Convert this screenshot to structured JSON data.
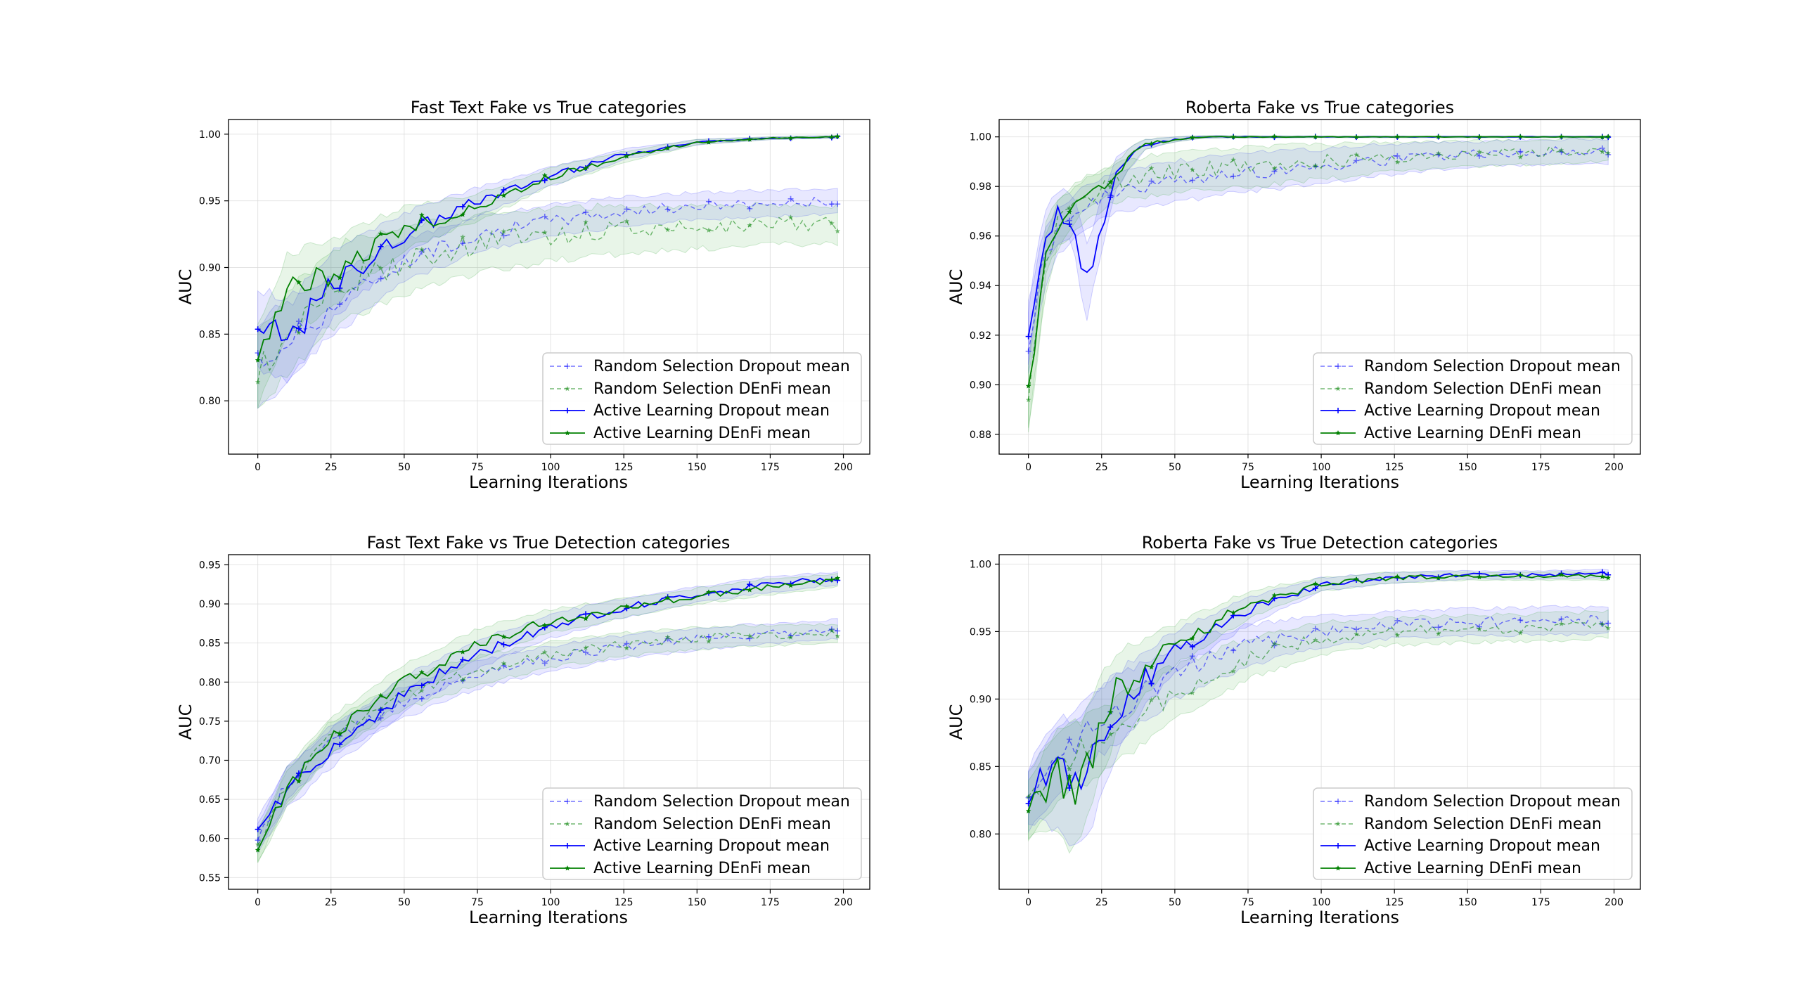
{
  "colors": {
    "blue": "#0000ff",
    "green": "#008000",
    "blue_band": "#4d4dff",
    "green_band": "#4caf50",
    "grid": "#d9d9d9"
  },
  "legend_location": "lower-right",
  "chart_data": [
    {
      "type": "line",
      "title": "Fast Text Fake vs True categories",
      "xlabel": "Learning Iterations",
      "ylabel": "AUC",
      "xlim": [
        -10,
        209
      ],
      "ylim": [
        0.76,
        1.011
      ],
      "x_ticks": [
        0,
        25,
        50,
        75,
        100,
        125,
        150,
        175,
        200
      ],
      "y_ticks": [
        0.8,
        0.85,
        0.9,
        0.95,
        1.0
      ],
      "grid": true,
      "legend": [
        "Random Selection Dropout mean",
        "Random Selection DEnFi mean",
        "Active Learning Dropout mean",
        "Active Learning DEnFi mean"
      ],
      "series": [
        {
          "name": "Random Selection Dropout mean",
          "style": "dashed",
          "color": "blue",
          "x": [
            0,
            10,
            25,
            50,
            75,
            100,
            125,
            150,
            175,
            198
          ],
          "values": [
            0.825,
            0.845,
            0.87,
            0.905,
            0.925,
            0.935,
            0.942,
            0.946,
            0.948,
            0.95
          ],
          "band": [
            0.035,
            0.028,
            0.022,
            0.016,
            0.013,
            0.012,
            0.011,
            0.01,
            0.01,
            0.009
          ]
        },
        {
          "name": "Random Selection DEnFi mean",
          "style": "dashed",
          "color": "green",
          "x": [
            0,
            10,
            25,
            50,
            75,
            100,
            125,
            150,
            175,
            198
          ],
          "values": [
            0.822,
            0.85,
            0.885,
            0.905,
            0.918,
            0.925,
            0.928,
            0.93,
            0.932,
            0.932
          ],
          "band": [
            0.03,
            0.03,
            0.03,
            0.026,
            0.022,
            0.02,
            0.018,
            0.016,
            0.015,
            0.014
          ]
        },
        {
          "name": "Active Learning Dropout mean",
          "style": "solid",
          "color": "blue",
          "x": [
            0,
            10,
            25,
            50,
            75,
            100,
            125,
            150,
            175,
            198
          ],
          "values": [
            0.855,
            0.845,
            0.885,
            0.925,
            0.95,
            0.968,
            0.985,
            0.994,
            0.997,
            0.998
          ],
          "band": [
            0.03,
            0.03,
            0.025,
            0.016,
            0.01,
            0.007,
            0.004,
            0.002,
            0.001,
            0.001
          ]
        },
        {
          "name": "Active Learning DEnFi mean",
          "style": "solid",
          "color": "green",
          "x": [
            0,
            10,
            25,
            50,
            75,
            100,
            125,
            150,
            175,
            198
          ],
          "values": [
            0.825,
            0.88,
            0.895,
            0.93,
            0.945,
            0.968,
            0.983,
            0.994,
            0.997,
            0.998
          ],
          "band": [
            0.03,
            0.03,
            0.025,
            0.016,
            0.01,
            0.007,
            0.004,
            0.002,
            0.001,
            0.001
          ]
        }
      ]
    },
    {
      "type": "line",
      "title": "Roberta Fake vs True categories",
      "xlabel": "Learning Iterations",
      "ylabel": "AUC",
      "xlim": [
        -10,
        209
      ],
      "ylim": [
        0.872,
        1.007
      ],
      "x_ticks": [
        0,
        25,
        50,
        75,
        100,
        125,
        150,
        175,
        200
      ],
      "y_ticks": [
        0.88,
        0.9,
        0.92,
        0.94,
        0.96,
        0.98,
        1.0
      ],
      "grid": true,
      "legend": [
        "Random Selection Dropout mean",
        "Random Selection DEnFi mean",
        "Active Learning Dropout mean",
        "Active Learning DEnFi mean"
      ],
      "series": [
        {
          "name": "Random Selection Dropout mean",
          "style": "dashed",
          "color": "blue",
          "x": [
            0,
            5,
            10,
            20,
            30,
            50,
            75,
            100,
            125,
            150,
            175,
            198
          ],
          "values": [
            0.918,
            0.95,
            0.962,
            0.972,
            0.978,
            0.982,
            0.986,
            0.988,
            0.991,
            0.993,
            0.994,
            0.994
          ],
          "band": [
            0.015,
            0.012,
            0.01,
            0.008,
            0.008,
            0.008,
            0.008,
            0.007,
            0.006,
            0.005,
            0.005,
            0.005
          ]
        },
        {
          "name": "Random Selection DEnFi mean",
          "style": "dashed",
          "color": "green",
          "x": [
            0,
            5,
            10,
            20,
            30,
            50,
            75,
            100,
            125,
            150,
            175,
            198
          ],
          "values": [
            0.895,
            0.945,
            0.965,
            0.975,
            0.982,
            0.986,
            0.988,
            0.99,
            0.992,
            0.993,
            0.994,
            0.995
          ],
          "band": [
            0.015,
            0.012,
            0.01,
            0.008,
            0.008,
            0.008,
            0.008,
            0.007,
            0.006,
            0.005,
            0.005,
            0.005
          ]
        },
        {
          "name": "Active Learning Dropout mean",
          "style": "solid",
          "color": "blue",
          "x": [
            0,
            3,
            6,
            10,
            15,
            20,
            25,
            30,
            35,
            40,
            50,
            60,
            100,
            150,
            198
          ],
          "values": [
            0.918,
            0.945,
            0.96,
            0.968,
            0.968,
            0.94,
            0.965,
            0.985,
            0.992,
            0.997,
            0.999,
            1.0,
            1.0,
            1.0,
            1.0
          ],
          "band": [
            0.01,
            0.01,
            0.01,
            0.01,
            0.01,
            0.015,
            0.01,
            0.006,
            0.004,
            0.002,
            0.001,
            0.0005,
            0.0003,
            0.0003,
            0.0003
          ]
        },
        {
          "name": "Active Learning DEnFi mean",
          "style": "solid",
          "color": "green",
          "x": [
            0,
            3,
            6,
            10,
            15,
            20,
            25,
            30,
            35,
            40,
            50,
            60,
            100,
            150,
            198
          ],
          "values": [
            0.895,
            0.92,
            0.955,
            0.965,
            0.972,
            0.978,
            0.98,
            0.985,
            0.992,
            0.997,
            0.999,
            1.0,
            1.0,
            1.0,
            1.0
          ],
          "band": [
            0.012,
            0.012,
            0.01,
            0.01,
            0.008,
            0.006,
            0.006,
            0.005,
            0.004,
            0.002,
            0.001,
            0.0005,
            0.0003,
            0.0003,
            0.0003
          ]
        }
      ]
    },
    {
      "type": "line",
      "title": "Fast Text Fake vs True Detection categories",
      "xlabel": "Learning Iterations",
      "ylabel": "AUC",
      "xlim": [
        -10,
        209
      ],
      "ylim": [
        0.535,
        0.963
      ],
      "x_ticks": [
        0,
        25,
        50,
        75,
        100,
        125,
        150,
        175,
        200
      ],
      "y_ticks": [
        0.55,
        0.6,
        0.65,
        0.7,
        0.75,
        0.8,
        0.85,
        0.9,
        0.95
      ],
      "grid": true,
      "legend": [
        "Random Selection Dropout mean",
        "Random Selection DEnFi mean",
        "Active Learning Dropout mean",
        "Active Learning DEnFi mean"
      ],
      "series": [
        {
          "name": "Random Selection Dropout mean",
          "style": "dashed",
          "color": "blue",
          "x": [
            0,
            10,
            25,
            50,
            75,
            100,
            125,
            150,
            175,
            198
          ],
          "values": [
            0.6,
            0.67,
            0.725,
            0.775,
            0.81,
            0.83,
            0.845,
            0.855,
            0.862,
            0.868
          ],
          "band": [
            0.02,
            0.02,
            0.02,
            0.02,
            0.018,
            0.016,
            0.015,
            0.014,
            0.013,
            0.012
          ]
        },
        {
          "name": "Random Selection DEnFi mean",
          "style": "dashed",
          "color": "green",
          "x": [
            0,
            10,
            25,
            50,
            75,
            100,
            125,
            150,
            175,
            198
          ],
          "values": [
            0.59,
            0.665,
            0.73,
            0.785,
            0.815,
            0.835,
            0.848,
            0.856,
            0.86,
            0.862
          ],
          "band": [
            0.02,
            0.02,
            0.02,
            0.02,
            0.018,
            0.016,
            0.015,
            0.014,
            0.013,
            0.012
          ]
        },
        {
          "name": "Active Learning Dropout mean",
          "style": "solid",
          "color": "blue",
          "x": [
            0,
            10,
            25,
            50,
            75,
            100,
            125,
            150,
            175,
            198
          ],
          "values": [
            0.605,
            0.665,
            0.715,
            0.785,
            0.835,
            0.872,
            0.895,
            0.912,
            0.925,
            0.933
          ],
          "band": [
            0.02,
            0.025,
            0.025,
            0.022,
            0.018,
            0.015,
            0.012,
            0.01,
            0.01,
            0.008
          ]
        },
        {
          "name": "Active Learning DEnFi mean",
          "style": "solid",
          "color": "green",
          "x": [
            0,
            10,
            25,
            50,
            75,
            100,
            125,
            150,
            175,
            198
          ],
          "values": [
            0.59,
            0.665,
            0.73,
            0.8,
            0.85,
            0.878,
            0.895,
            0.91,
            0.922,
            0.93
          ],
          "band": [
            0.02,
            0.025,
            0.025,
            0.022,
            0.018,
            0.015,
            0.012,
            0.01,
            0.01,
            0.008
          ]
        }
      ]
    },
    {
      "type": "line",
      "title": "Roberta Fake vs True Detection categories",
      "xlabel": "Learning Iterations",
      "ylabel": "AUC",
      "xlim": [
        -10,
        209
      ],
      "ylim": [
        0.759,
        1.007
      ],
      "x_ticks": [
        0,
        25,
        50,
        75,
        100,
        125,
        150,
        175,
        200
      ],
      "y_ticks": [
        0.8,
        0.85,
        0.9,
        0.95,
        1.0
      ],
      "grid": true,
      "legend": [
        "Random Selection Dropout mean",
        "Random Selection DEnFi mean",
        "Active Learning Dropout mean",
        "Active Learning DEnFi mean"
      ],
      "series": [
        {
          "name": "Random Selection Dropout mean",
          "style": "dashed",
          "color": "blue",
          "x": [
            0,
            10,
            25,
            50,
            75,
            100,
            125,
            150,
            175,
            198
          ],
          "values": [
            0.825,
            0.855,
            0.885,
            0.92,
            0.94,
            0.95,
            0.955,
            0.957,
            0.958,
            0.958
          ],
          "band": [
            0.025,
            0.025,
            0.025,
            0.02,
            0.015,
            0.012,
            0.01,
            0.01,
            0.01,
            0.01
          ]
        },
        {
          "name": "Random Selection DEnFi mean",
          "style": "dashed",
          "color": "green",
          "x": [
            0,
            10,
            25,
            50,
            75,
            100,
            125,
            150,
            175,
            198
          ],
          "values": [
            0.82,
            0.85,
            0.87,
            0.905,
            0.93,
            0.945,
            0.95,
            0.952,
            0.953,
            0.955
          ],
          "band": [
            0.025,
            0.025,
            0.025,
            0.02,
            0.015,
            0.012,
            0.01,
            0.01,
            0.01,
            0.01
          ]
        },
        {
          "name": "Active Learning Dropout mean",
          "style": "solid",
          "color": "blue",
          "x": [
            0,
            5,
            10,
            15,
            20,
            25,
            30,
            40,
            50,
            75,
            100,
            125,
            150,
            175,
            198
          ],
          "values": [
            0.828,
            0.84,
            0.845,
            0.835,
            0.845,
            0.87,
            0.89,
            0.915,
            0.935,
            0.965,
            0.985,
            0.99,
            0.992,
            0.992,
            0.993
          ],
          "band": [
            0.02,
            0.03,
            0.04,
            0.045,
            0.045,
            0.04,
            0.03,
            0.02,
            0.015,
            0.01,
            0.005,
            0.004,
            0.003,
            0.003,
            0.003
          ]
        },
        {
          "name": "Active Learning DEnFi mean",
          "style": "solid",
          "color": "green",
          "x": [
            0,
            5,
            10,
            15,
            20,
            25,
            30,
            40,
            50,
            75,
            100,
            125,
            150,
            175,
            198
          ],
          "values": [
            0.818,
            0.83,
            0.84,
            0.835,
            0.85,
            0.88,
            0.905,
            0.925,
            0.94,
            0.97,
            0.985,
            0.99,
            0.991,
            0.991,
            0.991
          ],
          "band": [
            0.02,
            0.03,
            0.04,
            0.045,
            0.04,
            0.035,
            0.03,
            0.02,
            0.015,
            0.01,
            0.005,
            0.004,
            0.003,
            0.003,
            0.003
          ]
        }
      ]
    }
  ]
}
